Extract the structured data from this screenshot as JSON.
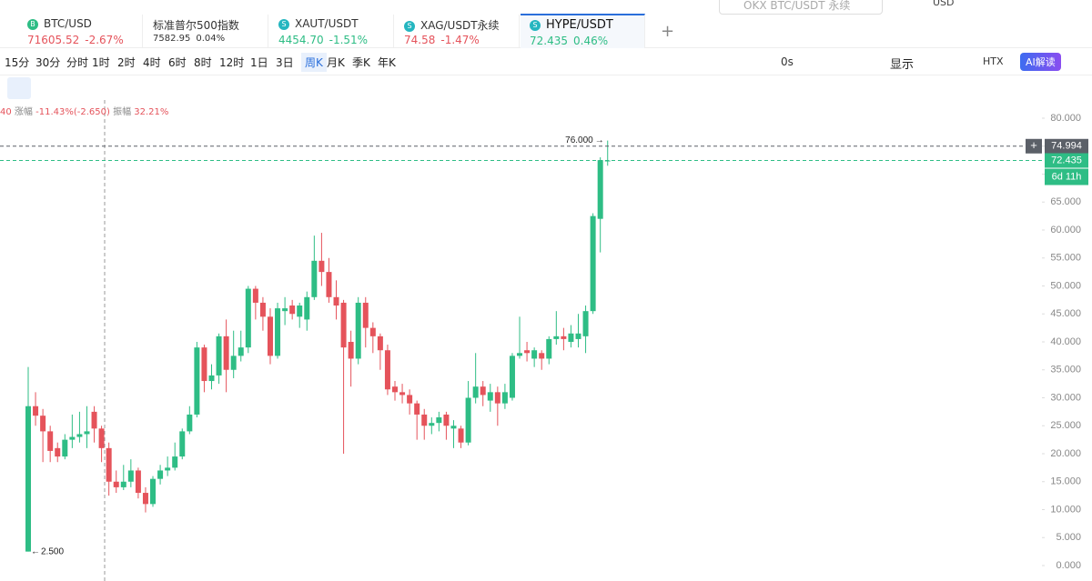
{
  "search": "OKX BTC/USDT 永续",
  "currency": "USD",
  "tabs": [
    {
      "symbol": "BTC/USD",
      "price": "71605.52",
      "change": "-2.67%",
      "color": "#e5535b",
      "icon": "B",
      "icon_color": "#2ebd85"
    },
    {
      "symbol": "标准普尔500指数",
      "price": "7582.95",
      "change": "0.04%",
      "color": "#333333"
    },
    {
      "symbol": "XAUT/USDT",
      "price": "4454.70",
      "change": "-1.51%",
      "color": "#2ebd85",
      "icon": "S",
      "icon_color": "#25b6c0"
    },
    {
      "symbol": "XAG/USDT永续",
      "price": "74.58",
      "change": "-1.47%",
      "color": "#e5535b",
      "icon": "S",
      "icon_color": "#25b6c0"
    },
    {
      "symbol": "HYPE/USDT",
      "price": "72.435",
      "change": "0.46%",
      "color": "#2ebd85",
      "icon": "S",
      "icon_color": "#25b6c0"
    }
  ],
  "intervals": [
    "15分",
    "30分",
    "分时",
    "1时",
    "2时",
    "4时",
    "6时",
    "8时",
    "12时",
    "1日",
    "3日",
    "周K",
    "月K",
    "季K",
    "年K"
  ],
  "active_interval": 11,
  "toolbar_right": {
    "timer": "0s",
    "display": "显示",
    "exchange": "HTX",
    "ai": "AI解读"
  },
  "info": {
    "prefix": "40",
    "change_label": "涨幅",
    "change": "-11.43%(-2.650)",
    "amp_label": "振幅",
    "amp": "32.21%"
  },
  "chart_data": {
    "type": "candlestick",
    "up_color": "#2ebd85",
    "down_color": "#e5535b",
    "open": [
      2.5,
      28.5,
      26.8,
      24,
      21,
      19.5,
      22.5,
      23,
      23.5,
      27.5,
      24.5,
      21,
      15,
      14,
      15,
      17,
      13,
      11,
      15.5,
      17,
      17.5,
      19.5,
      24,
      27,
      39,
      33,
      34,
      41,
      35,
      37.5,
      39,
      49.5,
      47,
      44.5,
      37.5,
      45.5,
      46.5,
      44.5,
      44,
      48,
      54.5,
      52.5,
      48,
      47,
      40,
      37,
      47,
      42.5,
      41,
      38.5,
      32,
      31,
      30.5,
      29,
      27,
      25,
      25.5,
      27,
      24.5,
      24.5,
      22,
      30,
      32,
      29.5,
      31,
      29,
      30,
      37.5,
      38.5,
      37,
      38,
      37,
      40.5,
      41,
      40,
      40.5,
      41,
      45.5,
      62,
      72.3
    ],
    "high": [
      35.5,
      31,
      28,
      25,
      22,
      23.5,
      27,
      27.5,
      28.5,
      28.5,
      25,
      22,
      17,
      18,
      19,
      17.5,
      14,
      16,
      18,
      19.5,
      22,
      24.5,
      28.5,
      40,
      39.5,
      36,
      41.5,
      44,
      42,
      42,
      50,
      50,
      48,
      46,
      47,
      48,
      47.5,
      47,
      49,
      59,
      59.5,
      55,
      51,
      47.5,
      42,
      48,
      48,
      43.5,
      41.5,
      39.5,
      33,
      32.5,
      31.5,
      29.5,
      28,
      26.5,
      27.5,
      27.5,
      26,
      25,
      33,
      38,
      33,
      32.5,
      32,
      32.5,
      38,
      44.5,
      40,
      39,
      38.5,
      41,
      45.5,
      42.5,
      43,
      45,
      46.5,
      63,
      73,
      76
    ],
    "low": [
      2.5,
      25,
      18.5,
      18.5,
      18.5,
      19,
      21,
      22,
      21,
      22,
      18.5,
      12.5,
      13,
      13.5,
      14,
      12,
      9.5,
      10.5,
      14.5,
      16,
      17,
      19,
      23.5,
      26.5,
      31,
      31.5,
      32.5,
      31,
      33.5,
      36.5,
      38,
      44,
      42,
      36,
      37,
      43,
      44,
      42.5,
      42,
      47.5,
      50,
      47,
      44,
      20,
      32,
      36,
      39,
      38,
      35,
      30.5,
      29.5,
      29,
      27,
      22.5,
      22.5,
      23.5,
      24,
      22.5,
      21,
      21,
      21.5,
      29,
      28.5,
      27.5,
      25,
      28,
      29.5,
      37,
      36.5,
      35.5,
      35,
      36,
      39.5,
      38.5,
      39,
      39,
      38,
      45,
      56,
      71.5
    ],
    "close": [
      28.5,
      26.8,
      24,
      20.5,
      19.5,
      22.5,
      23,
      23.5,
      24,
      24.5,
      21,
      15,
      14,
      15,
      17,
      13,
      11,
      15.5,
      17,
      17.5,
      19.5,
      24,
      27,
      39,
      33,
      34,
      41,
      35,
      37.5,
      39,
      49.5,
      47,
      44.5,
      37.5,
      46,
      46,
      45,
      46.5,
      48,
      54.5,
      52.5,
      48,
      46.5,
      39,
      37,
      47,
      42.5,
      41,
      38.5,
      31.5,
      31,
      30.5,
      29,
      27,
      25,
      25.5,
      26.5,
      25,
      25,
      22,
      30,
      32,
      30.5,
      31,
      29,
      31,
      37.5,
      38,
      38,
      38.5,
      37,
      40.5,
      41,
      40.5,
      41.5,
      41.5,
      45.5,
      62.5,
      72.5,
      72.435
    ],
    "ylim": [
      -1.3,
      83.25
    ],
    "yticks": [
      {
        "value": 0,
        "label": "0.000"
      },
      {
        "value": 5,
        "label": "5.000"
      },
      {
        "value": 10,
        "label": "10.000"
      },
      {
        "value": 15,
        "label": "15.000"
      },
      {
        "value": 20,
        "label": "20.000"
      },
      {
        "value": 25,
        "label": "25.000"
      },
      {
        "value": 30,
        "label": "30.000"
      },
      {
        "value": 35,
        "label": "35.000"
      },
      {
        "value": 40,
        "label": "40.000"
      },
      {
        "value": 45,
        "label": "45.000"
      },
      {
        "value": 50,
        "label": "50.000"
      },
      {
        "value": 55,
        "label": "55.000"
      },
      {
        "value": 60,
        "label": "60.000"
      },
      {
        "value": 65,
        "label": "65.000"
      },
      {
        "value": 70,
        "label": "70.000"
      },
      {
        "value": 75,
        "label": "75.000"
      },
      {
        "value": 80,
        "label": "80.000"
      }
    ],
    "grid": false,
    "annotations": [
      {
        "value": 76,
        "label": "76.000",
        "side": "left"
      },
      {
        "value": 2.5,
        "label": "2.500",
        "side": "right"
      }
    ],
    "price_lines": [
      {
        "value": 74.994,
        "label": "74.994",
        "color": "#5b6068"
      },
      {
        "value": 72.435,
        "label": "72.435",
        "color": "#2ebd85"
      }
    ],
    "countdown": "6d 11h"
  }
}
